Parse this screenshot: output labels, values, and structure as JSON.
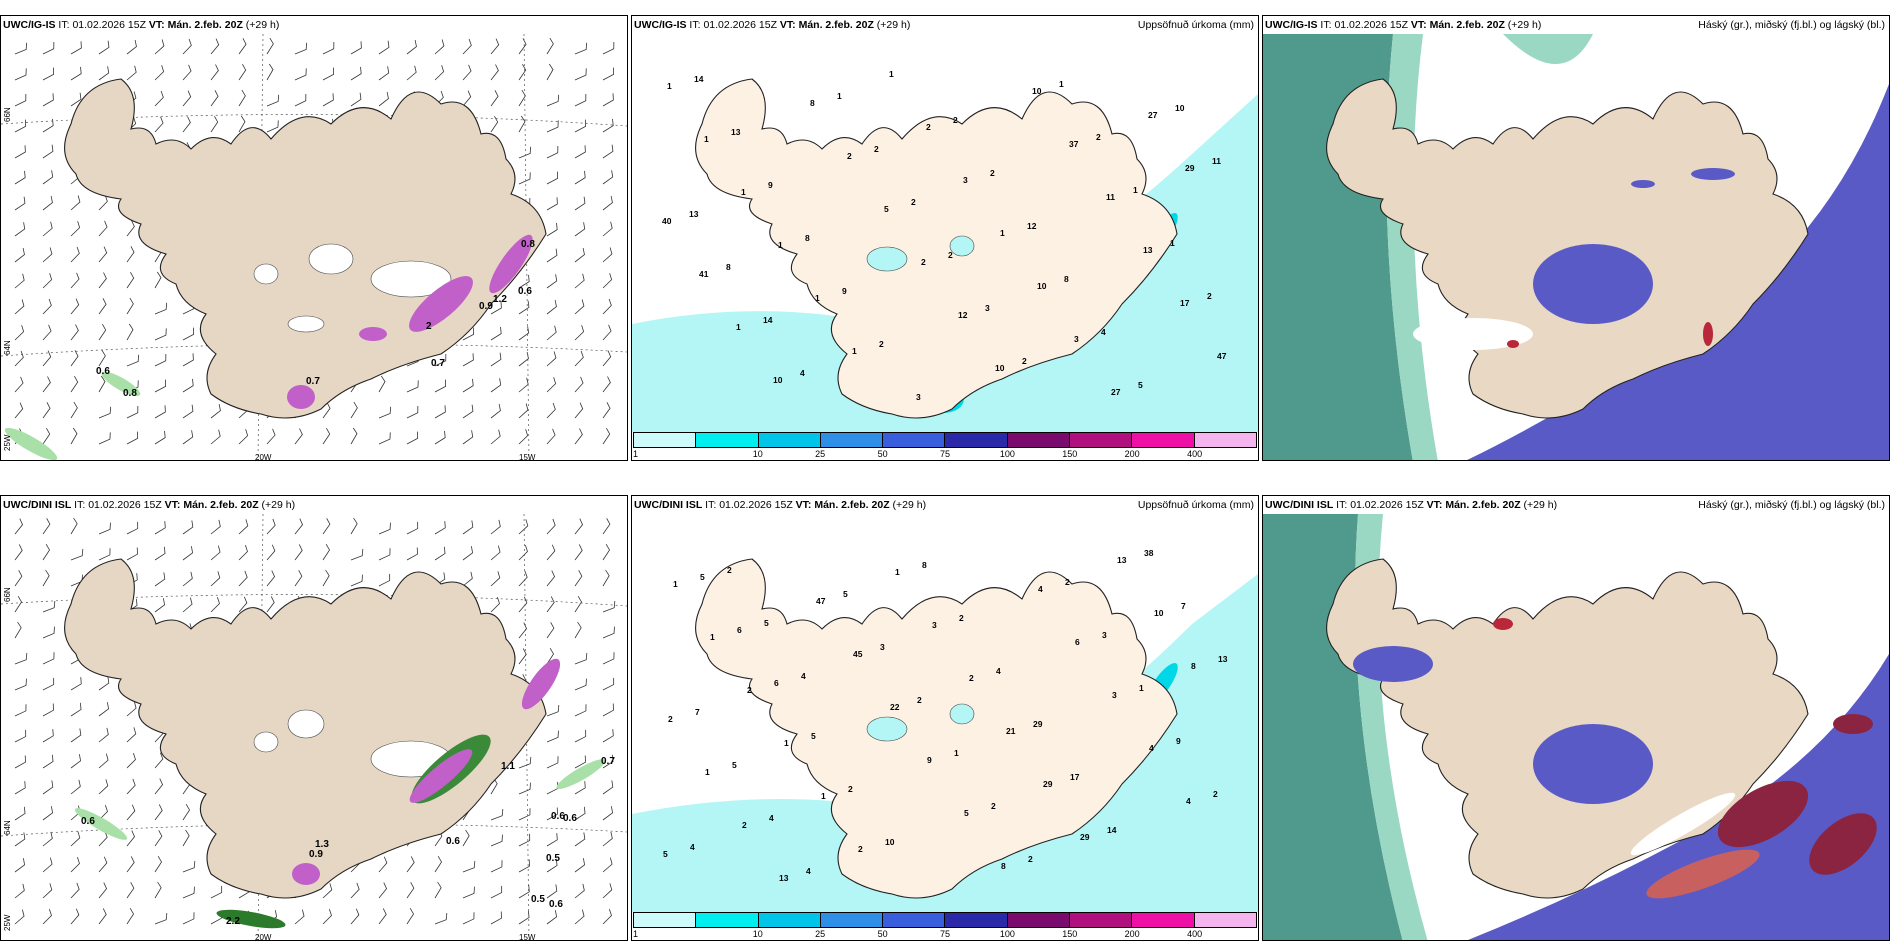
{
  "header": {
    "it_label": "IT:",
    "init_time": "01.02.2026 15Z",
    "vt_label": "VT:",
    "valid_time": "Mán. 2.feb. 20Z",
    "lead": "(+29 h)"
  },
  "rows": [
    {
      "model": "UWC/IG-IS"
    },
    {
      "model": "UWC/DINI ISL"
    }
  ],
  "titles": {
    "precip": "Uppsöfnuð úrkoma (mm)",
    "cloud": "Háský (gr.), miðský (fj.bl.) og lágský (bl.)"
  },
  "legend": {
    "ticks": [
      "1",
      "10",
      "25",
      "50",
      "75",
      "100",
      "150",
      "200",
      "400"
    ],
    "colors": [
      "#cdfafa",
      "#00eeee",
      "#00c5e8",
      "#2f8fe6",
      "#3a5fdd",
      "#2a2aa8",
      "#7a0a6e",
      "#b0107e",
      "#ee10a6",
      "#f4b4ee"
    ]
  },
  "axis": {
    "lon_20": "20W",
    "lon_15": "15W",
    "lat_66": "66N",
    "lat_64": "64N",
    "lat_25": "25W"
  },
  "wind_gust_labels": {
    "top": [
      "0.6",
      "0.8",
      "0.7",
      "0.9",
      "1.2",
      "2",
      "0.7",
      "0.6",
      "0.8"
    ],
    "bottom": [
      "0.6",
      "0.6",
      "0.6",
      "0.5",
      "0.5",
      "0.6",
      "0.6",
      "0.7",
      "2.2",
      "0.9",
      "1.3",
      "1.1"
    ]
  },
  "precip_labels": {
    "top": [
      "1",
      "1",
      "1",
      "1",
      "1",
      "1",
      "1",
      "2",
      "3",
      "1",
      "10",
      "3",
      "27",
      "27",
      "29",
      "40",
      "41",
      "1",
      "10",
      "8",
      "2",
      "5",
      "2",
      "12",
      "10",
      "10",
      "37",
      "11",
      "13",
      "17",
      "47",
      "14",
      "13",
      "9",
      "8",
      "9",
      "2",
      "3",
      "2",
      "2",
      "12",
      "8",
      "4",
      "5",
      "10",
      "11",
      "13",
      "8",
      "14",
      "4",
      "1",
      "2",
      "2",
      "2",
      "3",
      "2",
      "1",
      "2",
      "1",
      "1",
      "2"
    ],
    "bottom": [
      "1",
      "1",
      "2",
      "1",
      "1",
      "2",
      "1",
      "3",
      "2",
      "21",
      "29",
      "29",
      "13",
      "10",
      "8",
      "2",
      "1",
      "2",
      "13",
      "47",
      "45",
      "22",
      "9",
      "5",
      "8",
      "4",
      "6",
      "3",
      "4",
      "4",
      "5",
      "5",
      "6",
      "6",
      "5",
      "2",
      "10",
      "8",
      "2",
      "4",
      "29",
      "17",
      "14",
      "38",
      "7",
      "13",
      "7",
      "5",
      "4",
      "4",
      "5",
      "3",
      "2",
      "1",
      "2",
      "2",
      "2",
      "3",
      "1",
      "9",
      "2",
      "4",
      "2",
      "5",
      "4"
    ]
  }
}
